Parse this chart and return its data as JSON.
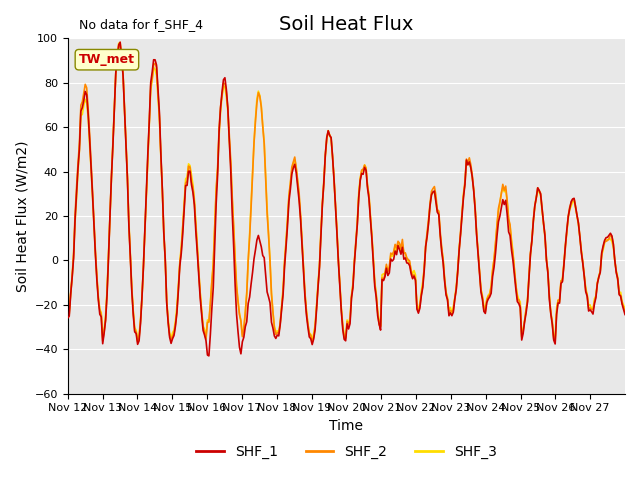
{
  "title": "Soil Heat Flux",
  "ylabel": "Soil Heat Flux (W/m2)",
  "xlabel": "Time",
  "ylim": [
    -60,
    100
  ],
  "no_data_text": "No data for f_SHF_4",
  "annotation_text": "TW_met",
  "line_colors": {
    "SHF_1": "#cc0000",
    "SHF_2": "#ff8800",
    "SHF_3": "#ffdd00"
  },
  "line_widths": {
    "SHF_1": 1.2,
    "SHF_2": 1.2,
    "SHF_3": 1.2
  },
  "bg_color": "#e8e8e8",
  "fig_bg_color": "#ffffff",
  "x_tick_labels": [
    "Nov 12",
    "Nov 13",
    "Nov 14",
    "Nov 15",
    "Nov 16",
    "Nov 17",
    "Nov 18",
    "Nov 19",
    "Nov 20",
    "Nov 21",
    "Nov 22",
    "Nov 23",
    "Nov 24",
    "Nov 25",
    "Nov 26",
    "Nov 27"
  ],
  "y_ticks": [
    -60,
    -40,
    -20,
    0,
    20,
    40,
    60,
    80,
    100
  ],
  "title_fontsize": 14,
  "label_fontsize": 10,
  "tick_fontsize": 8,
  "legend_fontsize": 10
}
